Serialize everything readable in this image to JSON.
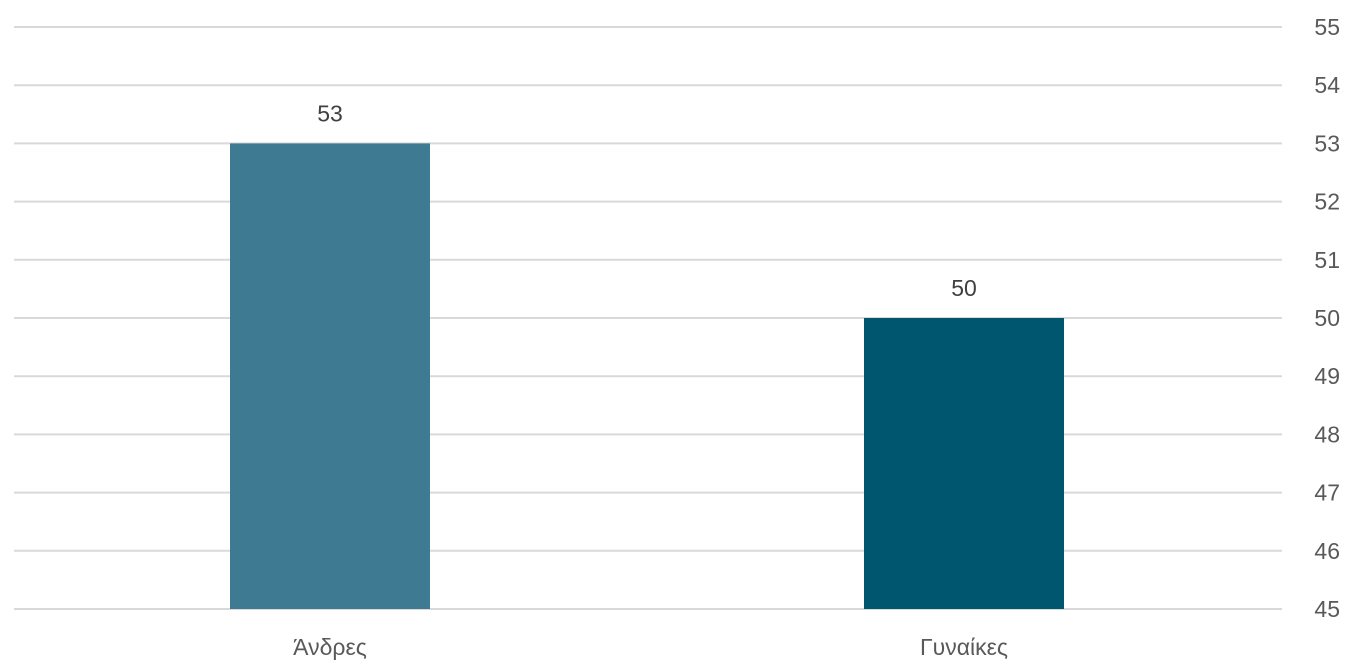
{
  "chart_data": {
    "type": "bar",
    "categories": [
      "Άνδρες",
      "Γυναίκες"
    ],
    "values": [
      53,
      50
    ],
    "data_labels": [
      "53",
      "50"
    ],
    "bar_colors": [
      "#3e7a92",
      "#00566e"
    ],
    "ylim": [
      45,
      55
    ],
    "yticks": [
      45,
      46,
      47,
      48,
      49,
      50,
      51,
      52,
      53,
      54,
      55
    ],
    "y_axis_side": "right",
    "grid": true,
    "title": "",
    "xlabel": "",
    "ylabel": ""
  }
}
